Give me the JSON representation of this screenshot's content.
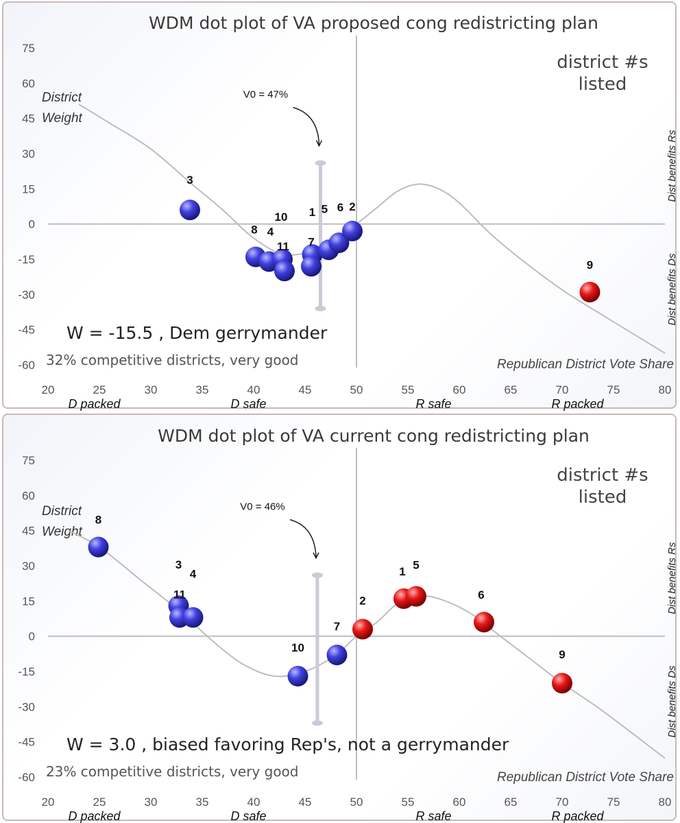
{
  "colors": {
    "dem": "#3b3bd6",
    "rep": "#e01010",
    "curve": "#bdbdbd",
    "axis": "#bdbdbd",
    "bar": "#c9ccd6"
  },
  "chart_data": [
    {
      "type": "scatter",
      "title": "WDM dot plot of VA proposed cong redistricting plan",
      "xlabel": "Republican District Vote Share",
      "ylabel": "District Weight",
      "xlim": [
        20,
        80
      ],
      "ylim": [
        -60,
        75
      ],
      "xticks": [
        "20",
        "25",
        "30",
        "35",
        "40",
        "45",
        "50",
        "55",
        "60",
        "65",
        "70",
        "75",
        "80"
      ],
      "yticks": [
        "75",
        "60",
        "45",
        "30",
        "15",
        "0",
        "-15",
        "-30",
        "-45",
        "-60"
      ],
      "zones": [
        "D packed",
        "D safe",
        "R safe",
        "R packed"
      ],
      "side_labels": [
        "Dist benefits Rs",
        "Dist benefits Ds"
      ],
      "annotation": "district #s listed",
      "v0_label": "V0 = 47%",
      "v0": 46.5,
      "v0_range": [
        -36,
        26
      ],
      "w_text": "W = -15.5 ,  Dem gerrymander",
      "competitive_text": "32% competitive districts, very good",
      "curve": [
        [
          23,
          51
        ],
        [
          26,
          43
        ],
        [
          30,
          32
        ],
        [
          34,
          17
        ],
        [
          37,
          6
        ],
        [
          40,
          -6
        ],
        [
          43,
          -13
        ],
        [
          46,
          -11
        ],
        [
          48,
          -6
        ],
        [
          50,
          0
        ],
        [
          52,
          7
        ],
        [
          54,
          14
        ],
        [
          56,
          17
        ],
        [
          58,
          15
        ],
        [
          60,
          9
        ],
        [
          63,
          -4
        ],
        [
          66,
          -15
        ],
        [
          70,
          -28
        ],
        [
          74,
          -39
        ],
        [
          80,
          -55
        ]
      ],
      "points": [
        {
          "district": "3",
          "x": 33.8,
          "y": 6,
          "party": "D"
        },
        {
          "district": "8",
          "x": 40.2,
          "y": -14,
          "party": "D"
        },
        {
          "district": "4",
          "x": 41.5,
          "y": -16,
          "party": "D"
        },
        {
          "district": "10",
          "x": 42.8,
          "y": -15,
          "party": "D"
        },
        {
          "district": "11",
          "x": 43.0,
          "y": -20,
          "party": "D"
        },
        {
          "district": "1",
          "x": 45.7,
          "y": -13,
          "party": "D"
        },
        {
          "district": "7",
          "x": 45.6,
          "y": -18,
          "party": "D"
        },
        {
          "district": "5",
          "x": 47.3,
          "y": -11,
          "party": "D"
        },
        {
          "district": "6",
          "x": 48.3,
          "y": -8,
          "party": "D"
        },
        {
          "district": "2",
          "x": 49.6,
          "y": -3,
          "party": "D"
        },
        {
          "district": "9",
          "x": 72.7,
          "y": -29,
          "party": "R"
        }
      ]
    },
    {
      "type": "scatter",
      "title": "WDM dot plot of VA current cong redistricting plan",
      "xlabel": "Republican District Vote Share",
      "ylabel": "District Weight",
      "xlim": [
        20,
        80
      ],
      "ylim": [
        -60,
        75
      ],
      "xticks": [
        "20",
        "25",
        "30",
        "35",
        "40",
        "45",
        "50",
        "55",
        "60",
        "65",
        "70",
        "75",
        "80"
      ],
      "yticks": [
        "75",
        "60",
        "45",
        "30",
        "15",
        "0",
        "-15",
        "-30",
        "-45",
        "-60"
      ],
      "zones": [
        "D packed",
        "D safe",
        "R safe",
        "R packed"
      ],
      "side_labels": [
        "Dist benefits Rs",
        "Dist benefits Ds"
      ],
      "annotation": "district #s listed",
      "v0_label": "V0 = 46%",
      "v0": 46.2,
      "v0_range": [
        -37,
        26
      ],
      "w_text": "W = 3.0 ,  biased favoring Rep's, not a gerrymander",
      "competitive_text": "23% competitive districts, very good",
      "curve": [
        [
          22,
          45
        ],
        [
          25,
          38
        ],
        [
          29,
          24
        ],
        [
          33,
          10
        ],
        [
          36,
          -2
        ],
        [
          39,
          -12
        ],
        [
          42,
          -17
        ],
        [
          45,
          -15
        ],
        [
          48,
          -8
        ],
        [
          50,
          0
        ],
        [
          52,
          6
        ],
        [
          54,
          14
        ],
        [
          56,
          17
        ],
        [
          58,
          16
        ],
        [
          61,
          10
        ],
        [
          64,
          0
        ],
        [
          67,
          -10
        ],
        [
          70,
          -20
        ],
        [
          74,
          -32
        ],
        [
          80,
          -52
        ]
      ],
      "points": [
        {
          "district": "8",
          "x": 24.9,
          "y": 38,
          "party": "D"
        },
        {
          "district": "3",
          "x": 32.7,
          "y": 13,
          "party": "D"
        },
        {
          "district": "11",
          "x": 32.8,
          "y": 8,
          "party": "D"
        },
        {
          "district": "4",
          "x": 34.1,
          "y": 8,
          "party": "D"
        },
        {
          "district": "10",
          "x": 44.3,
          "y": -17,
          "party": "D"
        },
        {
          "district": "7",
          "x": 48.1,
          "y": -8,
          "party": "D"
        },
        {
          "district": "2",
          "x": 50.6,
          "y": 3,
          "party": "R"
        },
        {
          "district": "1",
          "x": 54.6,
          "y": 16,
          "party": "R"
        },
        {
          "district": "5",
          "x": 55.8,
          "y": 17,
          "party": "R"
        },
        {
          "district": "6",
          "x": 62.4,
          "y": 6,
          "party": "R"
        },
        {
          "district": "9",
          "x": 70.0,
          "y": -20,
          "party": "R"
        }
      ]
    }
  ]
}
